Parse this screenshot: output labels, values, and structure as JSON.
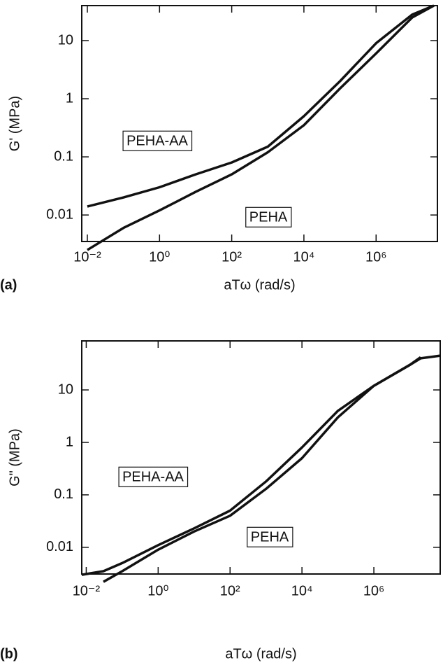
{
  "chart_data": [
    {
      "type": "line",
      "panel_label": "(a)",
      "x_label": "aTω (rad/s)",
      "y_label": "G' (MPa)",
      "log_x": true,
      "log_y": true,
      "xlim": [
        0.007,
        50000000
      ],
      "ylim": [
        0.0035,
        40
      ],
      "xticks": [
        {
          "value": 0.01,
          "label": "10⁻²"
        },
        {
          "value": 1,
          "label": "10⁰"
        },
        {
          "value": 100,
          "label": "10²"
        },
        {
          "value": 10000,
          "label": "10⁴"
        },
        {
          "value": 1000000,
          "label": "10⁶"
        }
      ],
      "yticks": [
        0.01,
        0.1,
        1,
        10
      ],
      "x": [
        0.01,
        0.1,
        1,
        10,
        100,
        1000,
        10000,
        100000,
        1000000,
        10000000,
        40000000
      ],
      "series": [
        {
          "name": "PEHA-AA",
          "color": "#111111",
          "values": [
            0.014,
            0.02,
            0.03,
            0.05,
            0.08,
            0.15,
            0.5,
            2,
            9,
            28,
            40
          ]
        },
        {
          "name": "PEHA",
          "color": "#111111",
          "values": [
            0.0025,
            0.006,
            0.012,
            0.025,
            0.05,
            0.12,
            0.35,
            1.5,
            6,
            25,
            40
          ]
        }
      ]
    },
    {
      "type": "line",
      "panel_label": "(b)",
      "x_label": "aTω (rad/s)",
      "y_label": "G\" (MPa)",
      "log_x": true,
      "log_y": true,
      "xlim": [
        0.0075,
        70000000
      ],
      "ylim": [
        0.0031,
        86
      ],
      "xticks": [
        {
          "value": 0.01,
          "label": "10⁻²"
        },
        {
          "value": 1,
          "label": "10⁰"
        },
        {
          "value": 100,
          "label": "10²"
        },
        {
          "value": 10000,
          "label": "10⁴"
        },
        {
          "value": 1000000,
          "label": "10⁶"
        }
      ],
      "yticks": [
        0.01,
        0.1,
        1,
        10
      ],
      "x": [
        0.0075,
        0.03,
        0.1,
        1,
        10,
        100,
        1000,
        10000,
        100000,
        1000000,
        10000000,
        20000000,
        70000000
      ],
      "series": [
        {
          "name": "PEHA-AA",
          "color": "#111111",
          "values": [
            0.003,
            0.0035,
            0.005,
            0.011,
            0.023,
            0.05,
            0.18,
            0.8,
            4,
            12,
            30,
            40,
            45
          ]
        },
        {
          "name": "PEHA",
          "color": "#111111",
          "values": [
            null,
            0.0022,
            0.0035,
            0.009,
            0.02,
            0.04,
            0.13,
            0.5,
            3,
            12,
            30,
            42,
            null
          ]
        }
      ]
    }
  ]
}
